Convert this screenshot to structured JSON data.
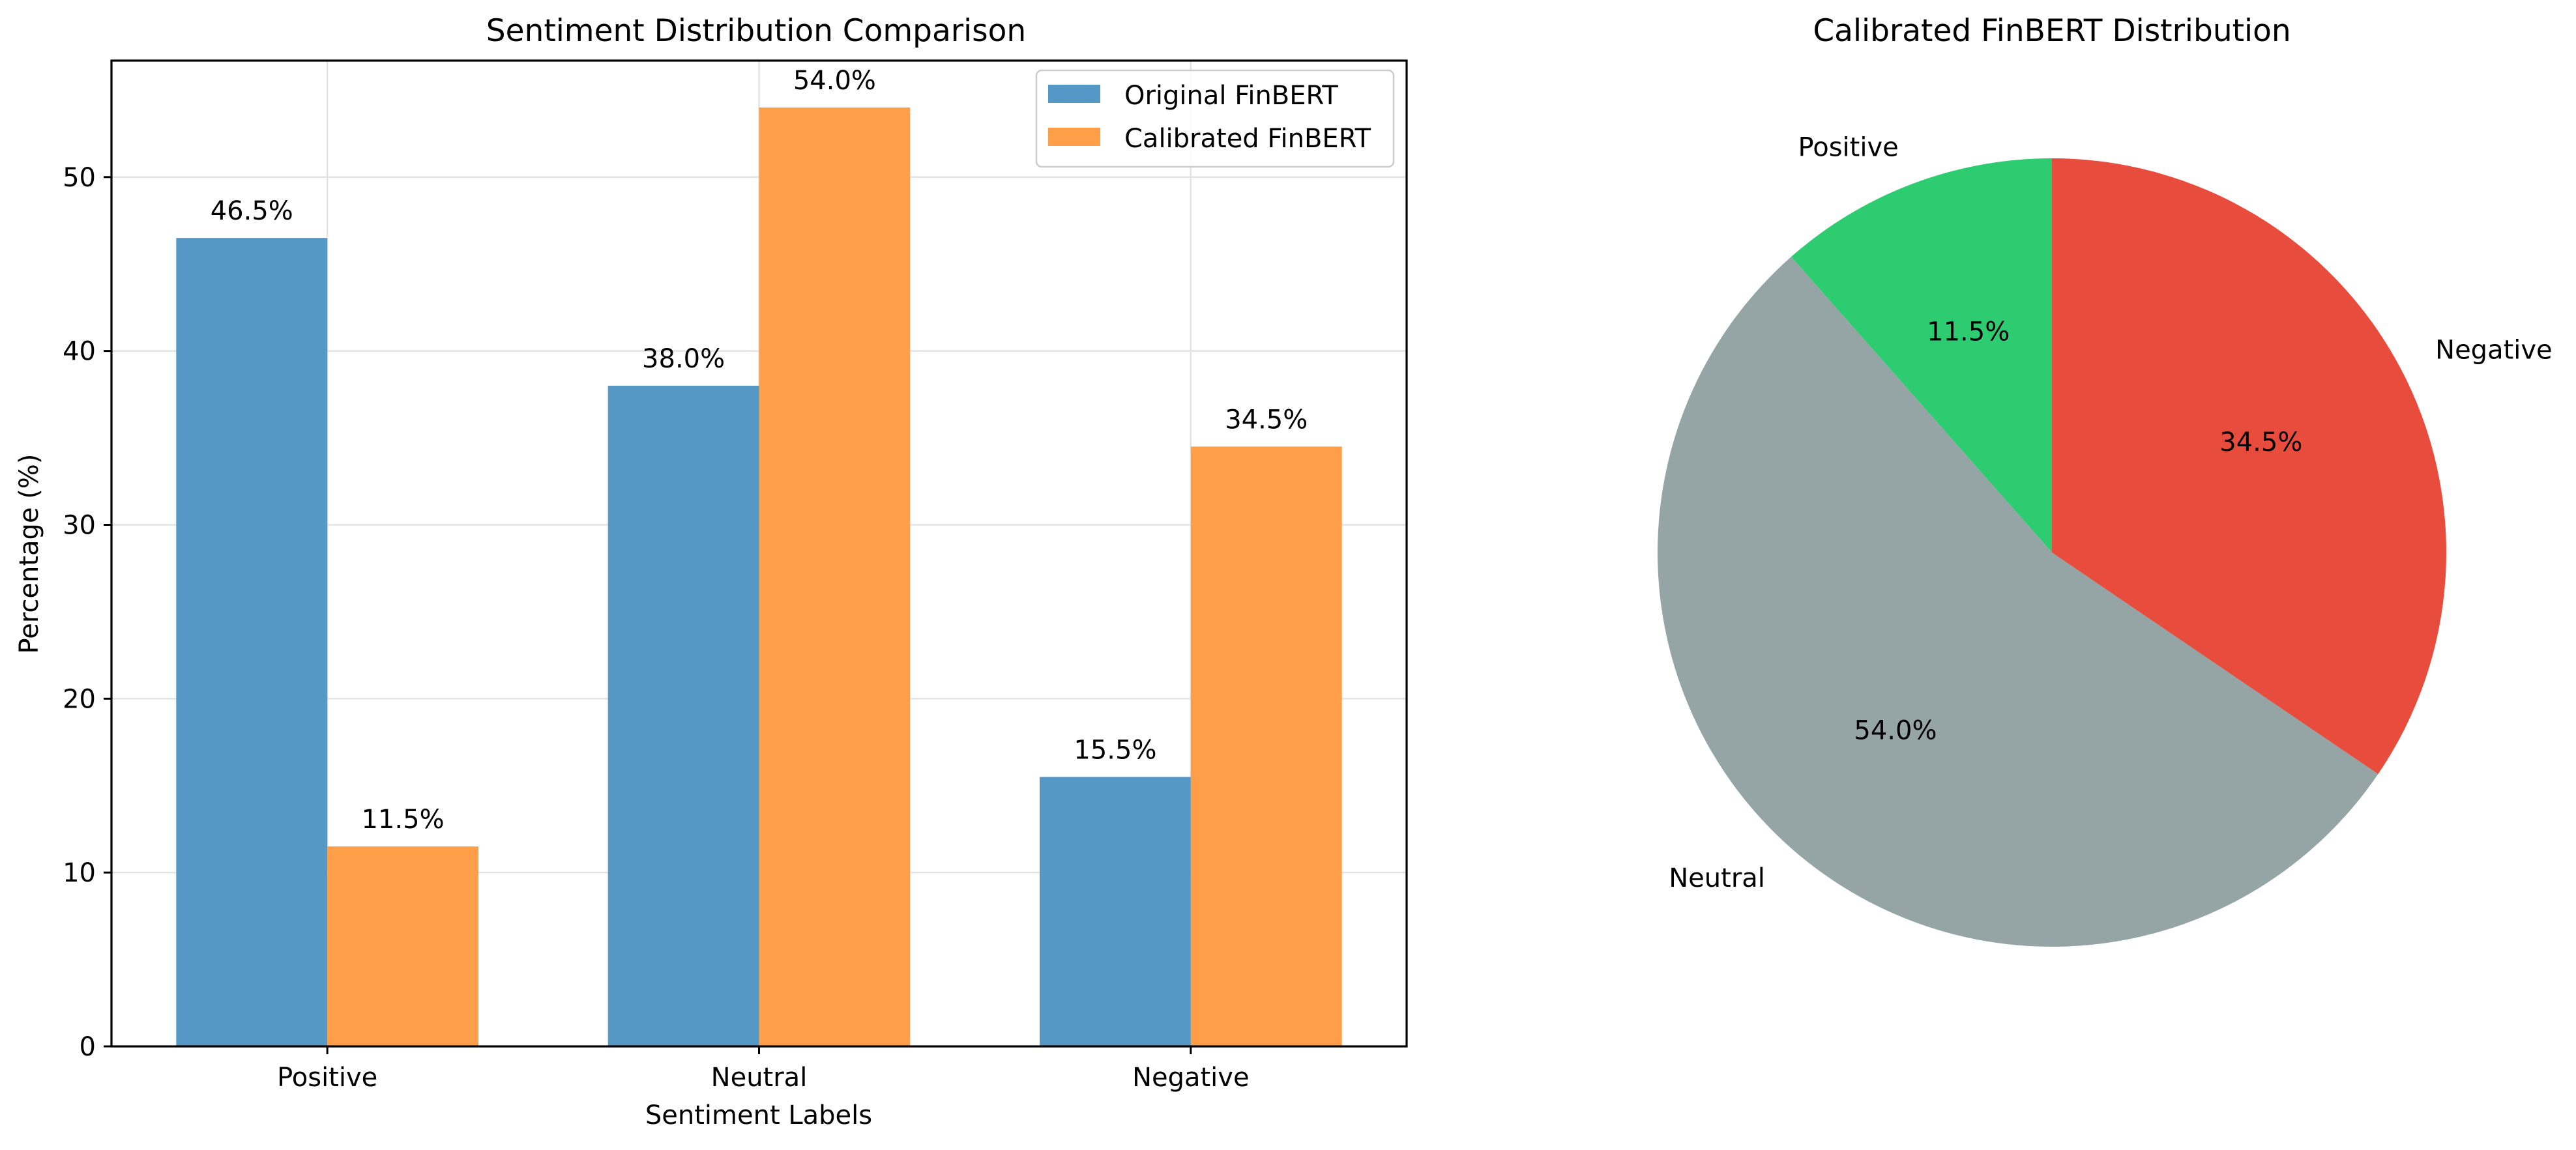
{
  "chart_data": [
    {
      "type": "bar",
      "title": "Sentiment Distribution Comparison",
      "xlabel": "Sentiment Labels",
      "ylabel": "Percentage (%)",
      "categories": [
        "Positive",
        "Neutral",
        "Negative"
      ],
      "ylim": [
        0,
        56.7
      ],
      "yticks": [
        0,
        10,
        20,
        30,
        40,
        50
      ],
      "grid": true,
      "legend_position": "top-right",
      "series": [
        {
          "name": "Original FinBERT",
          "color": "#4c92c3",
          "values": [
            46.5,
            38.0,
            15.5
          ],
          "labels": [
            "46.5%",
            "38.0%",
            "15.5%"
          ]
        },
        {
          "name": "Calibrated FinBERT",
          "color": "#ff993e",
          "values": [
            11.5,
            54.0,
            34.5
          ],
          "labels": [
            "11.5%",
            "54.0%",
            "34.5%"
          ]
        }
      ]
    },
    {
      "type": "pie",
      "title": "Calibrated FinBERT Distribution",
      "start_angle_deg": 90,
      "direction": "counterclockwise",
      "slices": [
        {
          "label": "Positive",
          "value": 11.5,
          "pct_label": "11.5%",
          "color": "#2ecc71"
        },
        {
          "label": "Neutral",
          "value": 54.0,
          "pct_label": "54.0%",
          "color": "#95a5a6"
        },
        {
          "label": "Negative",
          "value": 34.5,
          "pct_label": "34.5%",
          "color": "#e74c3c"
        }
      ]
    }
  ]
}
